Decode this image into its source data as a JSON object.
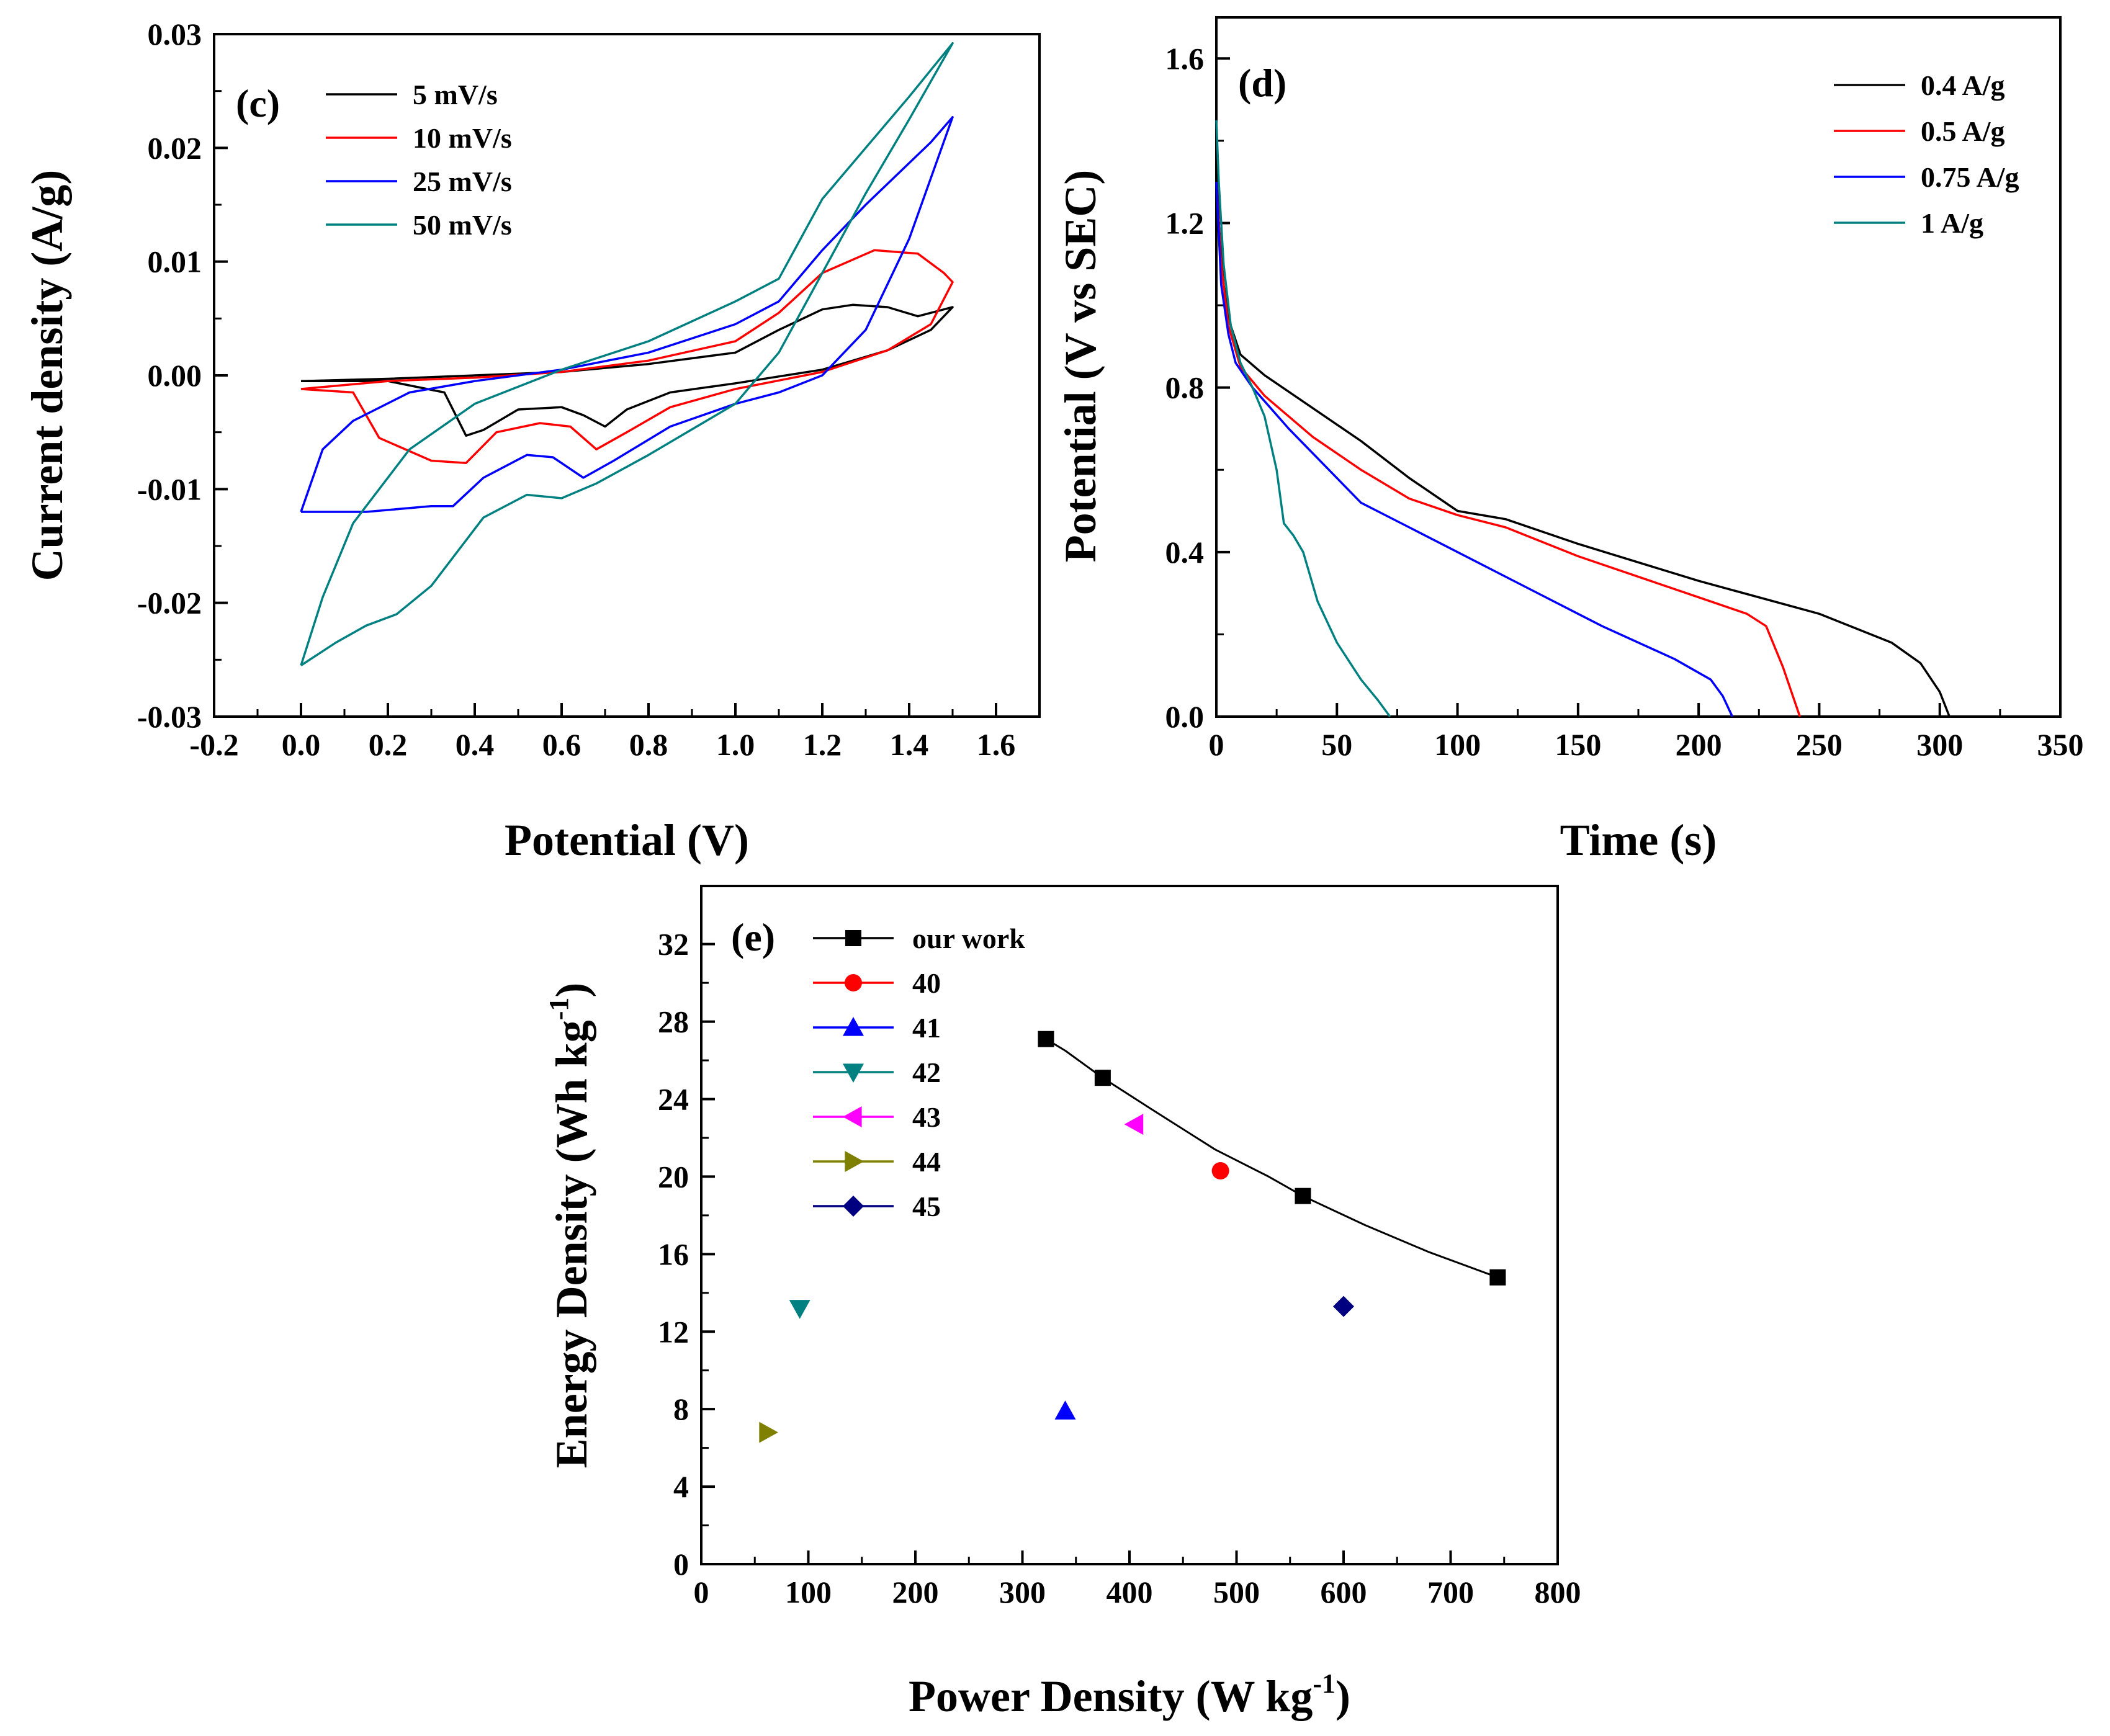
{
  "chart_data": [
    {
      "id": "c",
      "type": "line",
      "panel_label": "(c)",
      "xlabel": "Potential (V)",
      "ylabel": "Current density (A/g)",
      "xlim": [
        -0.2,
        1.7
      ],
      "ylim": [
        -0.03,
        0.03
      ],
      "xticks": [
        -0.2,
        0.0,
        0.2,
        0.4,
        0.6,
        0.8,
        1.0,
        1.2,
        1.4,
        1.6
      ],
      "xtick_labels": [
        "-0.2",
        "0.0",
        "0.2",
        "0.4",
        "0.6",
        "0.8",
        "1.0",
        "1.2",
        "1.4",
        "1.6"
      ],
      "yticks": [
        -0.03,
        -0.02,
        -0.01,
        0.0,
        0.01,
        0.02,
        0.03
      ],
      "ytick_labels": [
        "-0.03",
        "-0.02",
        "-0.01",
        "0.00",
        "0.01",
        "0.02",
        "0.03"
      ],
      "legend_position": "top-left",
      "series": [
        {
          "name": "5 mV/s",
          "color": "#000000",
          "points": [
            [
              0.0,
              -0.0005
            ],
            [
              0.2,
              -0.0003
            ],
            [
              0.4,
              0.0
            ],
            [
              0.6,
              0.0003
            ],
            [
              0.8,
              0.001
            ],
            [
              1.0,
              0.002
            ],
            [
              1.1,
              0.004
            ],
            [
              1.2,
              0.0058
            ],
            [
              1.27,
              0.0062
            ],
            [
              1.35,
              0.006
            ],
            [
              1.42,
              0.0052
            ],
            [
              1.5,
              0.006
            ],
            [
              1.45,
              0.004
            ],
            [
              1.35,
              0.0022
            ],
            [
              1.2,
              0.0005
            ],
            [
              1.0,
              -0.0007
            ],
            [
              0.85,
              -0.0015
            ],
            [
              0.75,
              -0.003
            ],
            [
              0.7,
              -0.0045
            ],
            [
              0.65,
              -0.0035
            ],
            [
              0.6,
              -0.0028
            ],
            [
              0.5,
              -0.003
            ],
            [
              0.42,
              -0.0048
            ],
            [
              0.38,
              -0.0053
            ],
            [
              0.33,
              -0.0015
            ],
            [
              0.2,
              -0.0005
            ],
            [
              0.0,
              -0.0005
            ]
          ]
        },
        {
          "name": "10 mV/s",
          "color": "#ff0000",
          "points": [
            [
              0.0,
              -0.0012
            ],
            [
              0.12,
              -0.0015
            ],
            [
              0.18,
              -0.0055
            ],
            [
              0.3,
              -0.0075
            ],
            [
              0.38,
              -0.0077
            ],
            [
              0.45,
              -0.005
            ],
            [
              0.55,
              -0.0042
            ],
            [
              0.62,
              -0.0045
            ],
            [
              0.68,
              -0.0065
            ],
            [
              0.75,
              -0.005
            ],
            [
              0.85,
              -0.0028
            ],
            [
              1.0,
              -0.0012
            ],
            [
              1.2,
              0.0003
            ],
            [
              1.35,
              0.0022
            ],
            [
              1.45,
              0.0045
            ],
            [
              1.5,
              0.0082
            ],
            [
              1.48,
              0.009
            ],
            [
              1.42,
              0.0107
            ],
            [
              1.32,
              0.011
            ],
            [
              1.2,
              0.009
            ],
            [
              1.1,
              0.0055
            ],
            [
              1.0,
              0.003
            ],
            [
              0.8,
              0.0013
            ],
            [
              0.6,
              0.0003
            ],
            [
              0.4,
              -0.0002
            ],
            [
              0.2,
              -0.0005
            ],
            [
              0.0,
              -0.0012
            ]
          ]
        },
        {
          "name": "25 mV/s",
          "color": "#0000ff",
          "points": [
            [
              0.0,
              -0.012
            ],
            [
              0.15,
              -0.012
            ],
            [
              0.3,
              -0.0115
            ],
            [
              0.35,
              -0.0115
            ],
            [
              0.42,
              -0.009
            ],
            [
              0.52,
              -0.007
            ],
            [
              0.58,
              -0.0072
            ],
            [
              0.65,
              -0.009
            ],
            [
              0.72,
              -0.0075
            ],
            [
              0.85,
              -0.0045
            ],
            [
              1.0,
              -0.0025
            ],
            [
              1.1,
              -0.0015
            ],
            [
              1.2,
              0.0
            ],
            [
              1.3,
              0.004
            ],
            [
              1.4,
              0.012
            ],
            [
              1.5,
              0.0227
            ],
            [
              1.45,
              0.0205
            ],
            [
              1.3,
              0.015
            ],
            [
              1.2,
              0.011
            ],
            [
              1.1,
              0.0065
            ],
            [
              1.0,
              0.0045
            ],
            [
              0.8,
              0.002
            ],
            [
              0.6,
              0.0005
            ],
            [
              0.4,
              -0.0005
            ],
            [
              0.25,
              -0.0015
            ],
            [
              0.12,
              -0.004
            ],
            [
              0.05,
              -0.0065
            ],
            [
              0.0,
              -0.012
            ]
          ]
        },
        {
          "name": "50 mV/s",
          "color": "#008080",
          "points": [
            [
              0.0,
              -0.0255
            ],
            [
              0.08,
              -0.0235
            ],
            [
              0.15,
              -0.022
            ],
            [
              0.22,
              -0.021
            ],
            [
              0.3,
              -0.0185
            ],
            [
              0.35,
              -0.016
            ],
            [
              0.42,
              -0.0125
            ],
            [
              0.52,
              -0.0105
            ],
            [
              0.6,
              -0.0108
            ],
            [
              0.68,
              -0.0095
            ],
            [
              0.8,
              -0.007
            ],
            [
              1.0,
              -0.0025
            ],
            [
              1.1,
              0.002
            ],
            [
              1.2,
              0.009
            ],
            [
              1.3,
              0.016
            ],
            [
              1.4,
              0.0225
            ],
            [
              1.5,
              0.0292
            ],
            [
              1.4,
              0.0245
            ],
            [
              1.3,
              0.02
            ],
            [
              1.2,
              0.0155
            ],
            [
              1.1,
              0.0085
            ],
            [
              1.0,
              0.0065
            ],
            [
              0.8,
              0.003
            ],
            [
              0.6,
              0.0005
            ],
            [
              0.4,
              -0.0025
            ],
            [
              0.25,
              -0.0065
            ],
            [
              0.12,
              -0.013
            ],
            [
              0.05,
              -0.0195
            ],
            [
              0.0,
              -0.0255
            ]
          ]
        }
      ]
    },
    {
      "id": "d",
      "type": "line",
      "panel_label": "(d)",
      "xlabel": "Time (s)",
      "ylabel": "Potential (V vs SEC)",
      "xlim": [
        0,
        350
      ],
      "ylim": [
        0.0,
        1.7
      ],
      "xticks": [
        0,
        50,
        100,
        150,
        200,
        250,
        300,
        350
      ],
      "xtick_labels": [
        "0",
        "50",
        "100",
        "150",
        "200",
        "250",
        "300",
        "350"
      ],
      "yticks": [
        0.0,
        0.4,
        0.8,
        1.2,
        1.6
      ],
      "ytick_labels": [
        "0.0",
        "0.4",
        "0.8",
        "1.2",
        "1.6"
      ],
      "legend_position": "top-right",
      "series": [
        {
          "name": "0.4 A/g",
          "color": "#000000",
          "points": [
            [
              0,
              1.45
            ],
            [
              1,
              1.2
            ],
            [
              3,
              1.05
            ],
            [
              6,
              0.95
            ],
            [
              10,
              0.88
            ],
            [
              20,
              0.83
            ],
            [
              40,
              0.75
            ],
            [
              60,
              0.67
            ],
            [
              80,
              0.58
            ],
            [
              100,
              0.5
            ],
            [
              120,
              0.48
            ],
            [
              150,
              0.42
            ],
            [
              200,
              0.33
            ],
            [
              250,
              0.25
            ],
            [
              280,
              0.18
            ],
            [
              292,
              0.13
            ],
            [
              300,
              0.06
            ],
            [
              304,
              0.0
            ]
          ]
        },
        {
          "name": "0.5 A/g",
          "color": "#ff0000",
          "points": [
            [
              0,
              1.3
            ],
            [
              2,
              1.1
            ],
            [
              5,
              0.95
            ],
            [
              10,
              0.85
            ],
            [
              20,
              0.78
            ],
            [
              40,
              0.68
            ],
            [
              60,
              0.6
            ],
            [
              80,
              0.53
            ],
            [
              100,
              0.49
            ],
            [
              120,
              0.46
            ],
            [
              150,
              0.39
            ],
            [
              180,
              0.33
            ],
            [
              200,
              0.29
            ],
            [
              220,
              0.25
            ],
            [
              228,
              0.22
            ],
            [
              235,
              0.12
            ],
            [
              242,
              0.0
            ]
          ]
        },
        {
          "name": "0.75 A/g",
          "color": "#0000ff",
          "points": [
            [
              0,
              1.3
            ],
            [
              2,
              1.05
            ],
            [
              5,
              0.93
            ],
            [
              8,
              0.86
            ],
            [
              15,
              0.8
            ],
            [
              30,
              0.7
            ],
            [
              50,
              0.58
            ],
            [
              60,
              0.52
            ],
            [
              80,
              0.46
            ],
            [
              100,
              0.4
            ],
            [
              130,
              0.31
            ],
            [
              160,
              0.22
            ],
            [
              190,
              0.14
            ],
            [
              205,
              0.09
            ],
            [
              210,
              0.05
            ],
            [
              214,
              0.0
            ]
          ]
        },
        {
          "name": "1 A/g",
          "color": "#008080",
          "points": [
            [
              0,
              1.45
            ],
            [
              1,
              1.3
            ],
            [
              3,
              1.1
            ],
            [
              6,
              0.95
            ],
            [
              10,
              0.86
            ],
            [
              15,
              0.8
            ],
            [
              20,
              0.73
            ],
            [
              25,
              0.6
            ],
            [
              28,
              0.47
            ],
            [
              32,
              0.44
            ],
            [
              36,
              0.4
            ],
            [
              42,
              0.28
            ],
            [
              50,
              0.18
            ],
            [
              60,
              0.09
            ],
            [
              67,
              0.04
            ],
            [
              72,
              0.0
            ]
          ]
        }
      ]
    },
    {
      "id": "e",
      "type": "scatter",
      "panel_label": "(e)",
      "xlabel": "Power Density (W kg",
      "xlabel_sup": "-1",
      "xlabel_end": ")",
      "ylabel": "Energy Density (Wh kg",
      "ylabel_sup": "-1",
      "ylabel_end": ")",
      "xlim": [
        0,
        800
      ],
      "ylim": [
        0,
        35
      ],
      "xticks": [
        0,
        100,
        200,
        300,
        400,
        500,
        600,
        700,
        800
      ],
      "xtick_labels": [
        "0",
        "100",
        "200",
        "300",
        "400",
        "500",
        "600",
        "700",
        "800"
      ],
      "yticks": [
        0,
        4,
        8,
        12,
        16,
        20,
        24,
        28,
        32
      ],
      "ytick_labels": [
        "0",
        "4",
        "8",
        "12",
        "16",
        "20",
        "24",
        "28",
        "32"
      ],
      "legend_position": "top-left",
      "series": [
        {
          "name": "our work",
          "color": "#000000",
          "marker": "square",
          "line": true,
          "points": [
            [
              322,
              27.1
            ],
            [
              375,
              25.1
            ],
            [
              562,
              19.0
            ],
            [
              744,
              14.8
            ]
          ],
          "curve": [
            [
              322,
              27.1
            ],
            [
              340,
              26.5
            ],
            [
              375,
              25.1
            ],
            [
              420,
              23.5
            ],
            [
              480,
              21.4
            ],
            [
              530,
              20.0
            ],
            [
              562,
              19.0
            ],
            [
              620,
              17.5
            ],
            [
              680,
              16.1
            ],
            [
              744,
              14.8
            ]
          ]
        },
        {
          "name": "40",
          "color": "#ff0000",
          "marker": "circle",
          "line": false,
          "points": [
            [
              485,
              20.3
            ]
          ]
        },
        {
          "name": "41",
          "color": "#0000ff",
          "marker": "triangle-up",
          "line": false,
          "points": [
            [
              340,
              7.9
            ]
          ]
        },
        {
          "name": "42",
          "color": "#008080",
          "marker": "triangle-down",
          "line": false,
          "points": [
            [
              92,
              13.2
            ]
          ]
        },
        {
          "name": "43",
          "color": "#ff00ff",
          "marker": "triangle-left",
          "line": false,
          "points": [
            [
              405,
              22.7
            ]
          ]
        },
        {
          "name": "44",
          "color": "#808000",
          "marker": "triangle-right",
          "line": false,
          "points": [
            [
              62,
              6.8
            ]
          ]
        },
        {
          "name": "45",
          "color": "#000080",
          "marker": "diamond",
          "line": false,
          "points": [
            [
              600,
              13.3
            ]
          ]
        }
      ]
    }
  ]
}
